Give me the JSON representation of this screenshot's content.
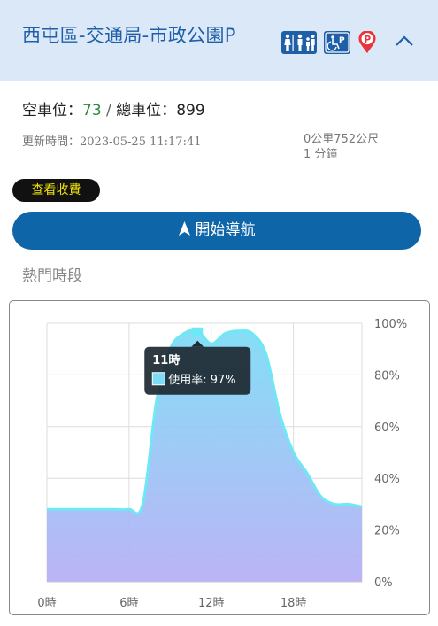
{
  "header": {
    "title": "西屯區-交通局-市政公園P",
    "icons": [
      "family-restroom-icon",
      "accessible-parking-icon",
      "parking-marker-icon",
      "chevron-up-icon"
    ]
  },
  "status": {
    "available_label": "空車位：",
    "available_value": "73",
    "separator": " / ",
    "total_label": "總車位：",
    "total_value": "899",
    "updated_label": "更新時間：",
    "updated_value": "2023-05-25 11:17:41",
    "distance": "0公里752公尺",
    "duration": "1 分鐘"
  },
  "actions": {
    "fee_label": "查看收費",
    "navigate_label": "開始導航"
  },
  "section_title": "熱門時段",
  "colors": {
    "header_bg": "#dbe8f8",
    "title": "#1f5fa8",
    "available": "#2a8a3a",
    "nav_button": "#0e66a8",
    "fee_text": "#f4e40a",
    "line": "#6ee8f4",
    "area_top": "#7fdcf6",
    "area_bottom": "#b8b0f6"
  },
  "chart_data": {
    "type": "area",
    "x": [
      0,
      1,
      2,
      3,
      4,
      5,
      6,
      7,
      8,
      9,
      10,
      11,
      12,
      13,
      14,
      15,
      16,
      17,
      18,
      19,
      20,
      21,
      22,
      23
    ],
    "x_ticks": [
      "0時",
      "6時",
      "12時",
      "18時"
    ],
    "x_tick_values": [
      0,
      6,
      12,
      18
    ],
    "y_ticks": [
      "0%",
      "20%",
      "40%",
      "60%",
      "80%",
      "100%"
    ],
    "y_tick_values": [
      0,
      20,
      40,
      60,
      80,
      100
    ],
    "ylim": [
      0,
      100
    ],
    "xlim": [
      0,
      23
    ],
    "grid": true,
    "series": [
      {
        "name": "使用率",
        "values": [
          28,
          28,
          28,
          28,
          28,
          28,
          28,
          30,
          70,
          90,
          96,
          97,
          92,
          96,
          97,
          96,
          88,
          65,
          50,
          42,
          33,
          30,
          30,
          29
        ]
      }
    ],
    "tooltip": {
      "title": "11時",
      "label": "使用率: 97%",
      "x": 11
    }
  }
}
